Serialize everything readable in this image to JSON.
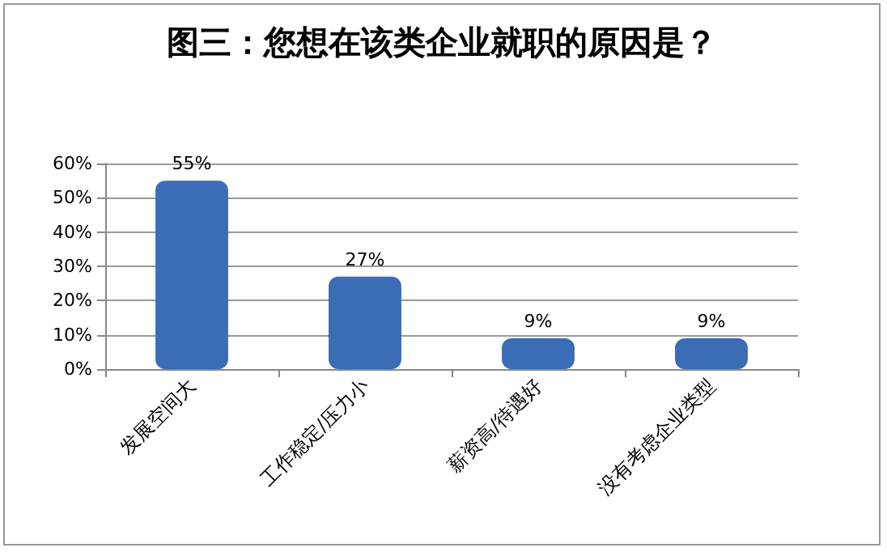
{
  "chart_data": {
    "type": "bar",
    "title": "图三：您想在该类企业就职的原因是？",
    "categories": [
      "发展空间大",
      "工作稳定/压力小",
      "薪资高/待遇好",
      "没有考虑企业类型"
    ],
    "values": [
      55,
      27,
      9,
      9
    ],
    "color": "#3a6db5",
    "value_labels": [
      "55%",
      "27%",
      "9%",
      "9%"
    ],
    "ylim": [
      0,
      60
    ],
    "yticks": [
      {
        "value": 0,
        "label": "0%"
      },
      {
        "value": 10,
        "label": "10%"
      },
      {
        "value": 20,
        "label": "20%"
      },
      {
        "value": 30,
        "label": "30%"
      },
      {
        "value": 40,
        "label": "40%"
      },
      {
        "value": 50,
        "label": "50%"
      },
      {
        "value": 60,
        "label": "60%"
      }
    ],
    "grid": "y"
  }
}
